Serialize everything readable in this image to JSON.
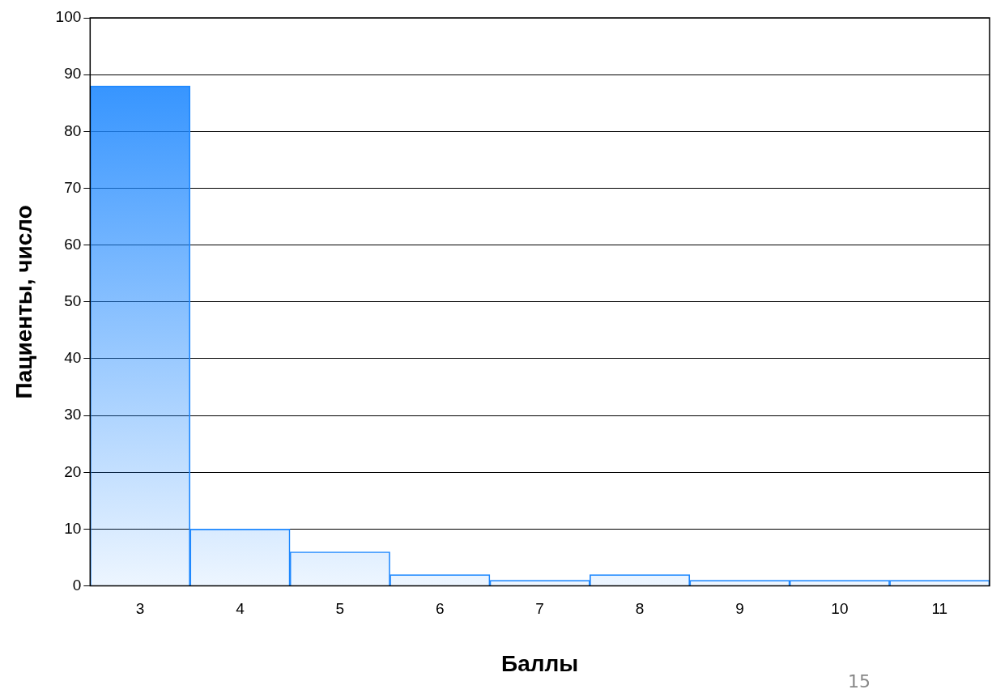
{
  "chart_data": {
    "type": "bar",
    "xlabel": "Баллы",
    "ylabel": "Пациенты, число",
    "categories": [
      "3",
      "4",
      "5",
      "6",
      "7",
      "8",
      "9",
      "10",
      "11"
    ],
    "values": [
      88,
      10,
      6,
      2,
      1,
      2,
      1,
      1,
      1
    ],
    "color": "#1e88ff",
    "ylim": [
      0,
      100
    ],
    "yticks": [
      0,
      10,
      20,
      30,
      40,
      50,
      60,
      70,
      80,
      90,
      100
    ],
    "grid": "y",
    "annotations": [
      "15"
    ]
  }
}
